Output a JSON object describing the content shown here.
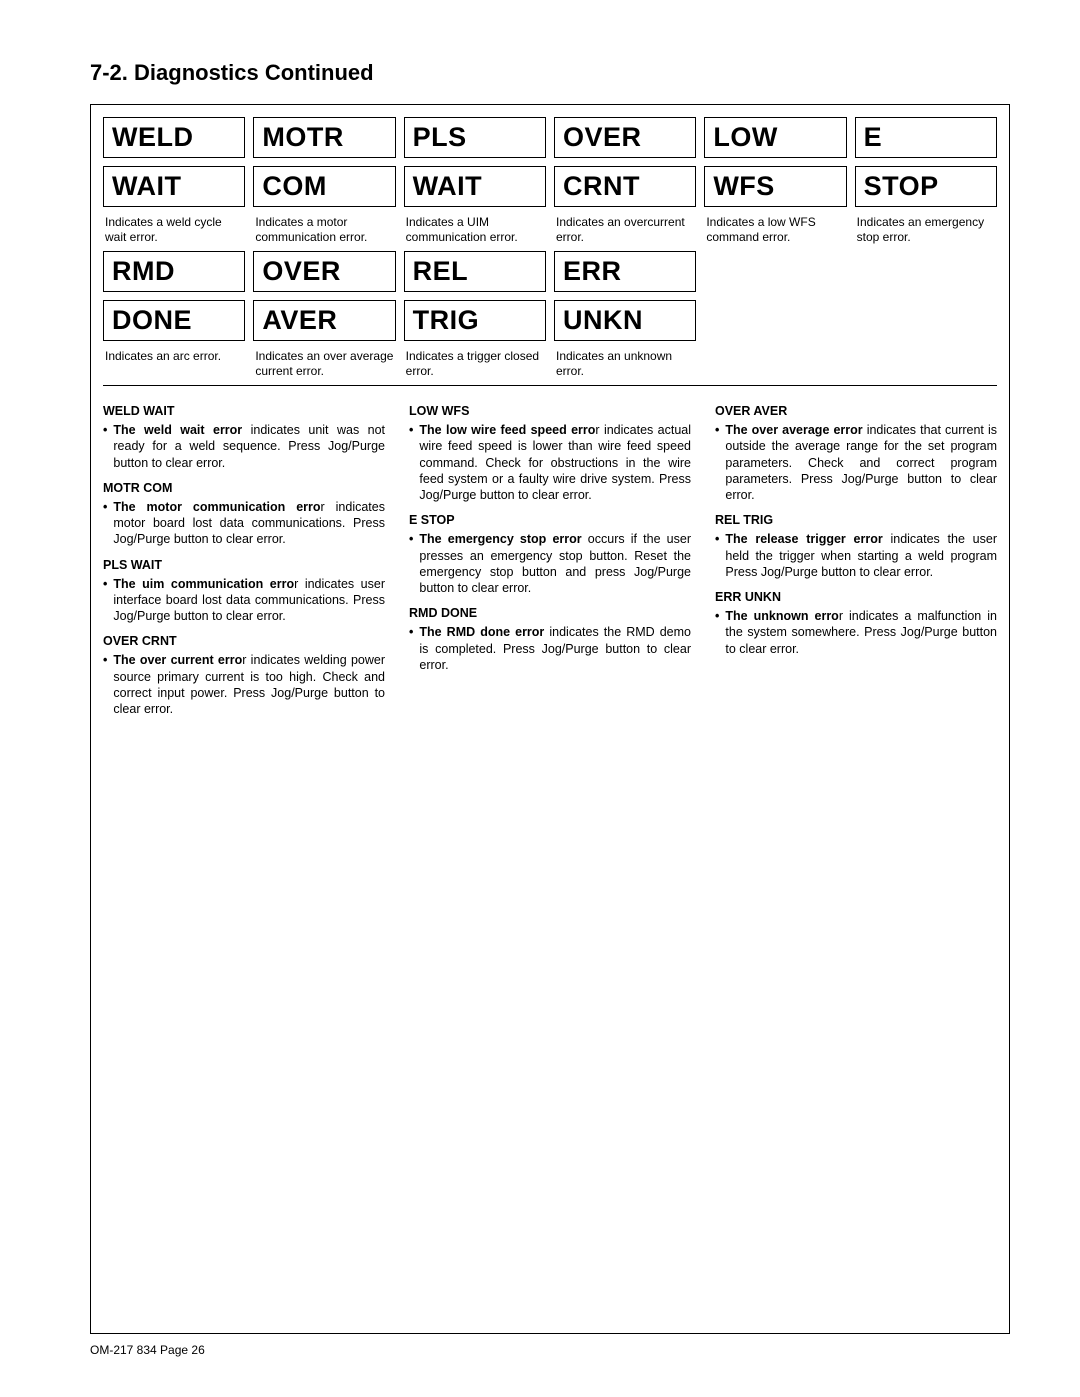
{
  "section_title": "7-2.   Diagnostics Continued",
  "row1": [
    {
      "top": "WELD",
      "bottom": "WAIT",
      "caption": "Indicates a weld cycle wait error."
    },
    {
      "top": "MOTR",
      "bottom": "COM",
      "caption": "Indicates a motor communication error."
    },
    {
      "top": "PLS",
      "bottom": "WAIT",
      "caption": "Indicates a UIM communication error."
    },
    {
      "top": "OVER",
      "bottom": "CRNT",
      "caption": "Indicates an overcurrent error."
    },
    {
      "top": "LOW",
      "bottom": "WFS",
      "caption": "Indicates a low WFS command error."
    },
    {
      "top": "E",
      "bottom": "STOP",
      "caption": "Indicates an emergency stop error."
    }
  ],
  "row2": [
    {
      "top": "RMD",
      "bottom": "DONE",
      "caption": "Indicates an arc error."
    },
    {
      "top": "OVER",
      "bottom": "AVER",
      "caption": "Indicates an over average current error."
    },
    {
      "top": "REL",
      "bottom": "TRIG",
      "caption": "Indicates a trigger closed error."
    },
    {
      "top": "ERR",
      "bottom": "UNKN",
      "caption": "Indicates an unknown error."
    }
  ],
  "descriptions": {
    "col1": [
      {
        "head": "WELD WAIT",
        "bold": "The weld wait error",
        "rest": " indicates unit was not ready for a weld sequence. Press Jog/Purge button to clear error."
      },
      {
        "head": "MOTR COM",
        "bold": "The motor communication erro",
        "rest": "r indicates motor board lost data communications. Press Jog/Purge button to clear error."
      },
      {
        "head": "PLS WAIT",
        "bold": "The uim communication erro",
        "rest": "r indicates user interface board lost data communications. Press Jog/Purge button to clear error."
      },
      {
        "head": "OVER CRNT",
        "bold": "The over current erro",
        "rest": "r indicates welding power source primary current is too high. Check and correct input power. Press Jog/Purge button to clear error."
      }
    ],
    "col2": [
      {
        "head": "LOW WFS",
        "bold": "The low wire feed speed erro",
        "rest": "r indicates actual wire feed speed is lower than wire feed speed command. Check for obstructions in the wire feed system or a faulty wire drive system. Press Jog/Purge button to clear error."
      },
      {
        "head": "E STOP",
        "bold": "The emergency stop error",
        "rest": "  occurs if the user presses an emergency stop button. Reset the emergency stop button and press Jog/Purge button to clear error."
      },
      {
        "head": "RMD DONE",
        "bold": "The RMD done error",
        "rest": " indicates the RMD demo is completed. Press Jog/Purge button to clear error."
      }
    ],
    "col3": [
      {
        "head": "OVER AVER",
        "bold": "The over average error",
        "rest": " indicates that current is outside the average range for the set program parameters. Check and correct program parameters. Press Jog/Purge button to clear error."
      },
      {
        "head": "REL TRIG",
        "bold": "The release trigger error",
        "rest": " indicates the user held the trigger when starting a weld program Press Jog/Purge button to clear error."
      },
      {
        "head": "ERR UNKN",
        "bold": "The unknown erro",
        "rest": "r indicates a malfunction in the system somewhere. Press Jog/Purge button to clear error."
      }
    ]
  },
  "footer": "OM-217 834 Page 26"
}
